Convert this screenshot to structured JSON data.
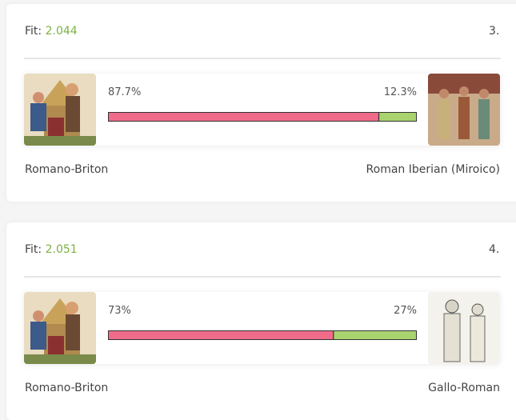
{
  "cards": [
    {
      "fit_label": "Fit:",
      "fit": "2.044",
      "rank": "3.",
      "left": {
        "name": "Romano-Briton",
        "percent": {
          "value": 87.7,
          "label": "87.7%"
        }
      },
      "right": {
        "name": "Roman Iberian (Miroico)",
        "percent": {
          "value": 12.3,
          "label": "12.3%"
        }
      }
    },
    {
      "fit_label": "Fit:",
      "fit": "2.051",
      "rank": "4.",
      "left": {
        "name": "Romano-Briton",
        "percent": {
          "value": 73,
          "label": "73%"
        }
      },
      "right": {
        "name": "Gallo-Roman",
        "percent": {
          "value": 27,
          "label": "27%"
        }
      }
    }
  ]
}
